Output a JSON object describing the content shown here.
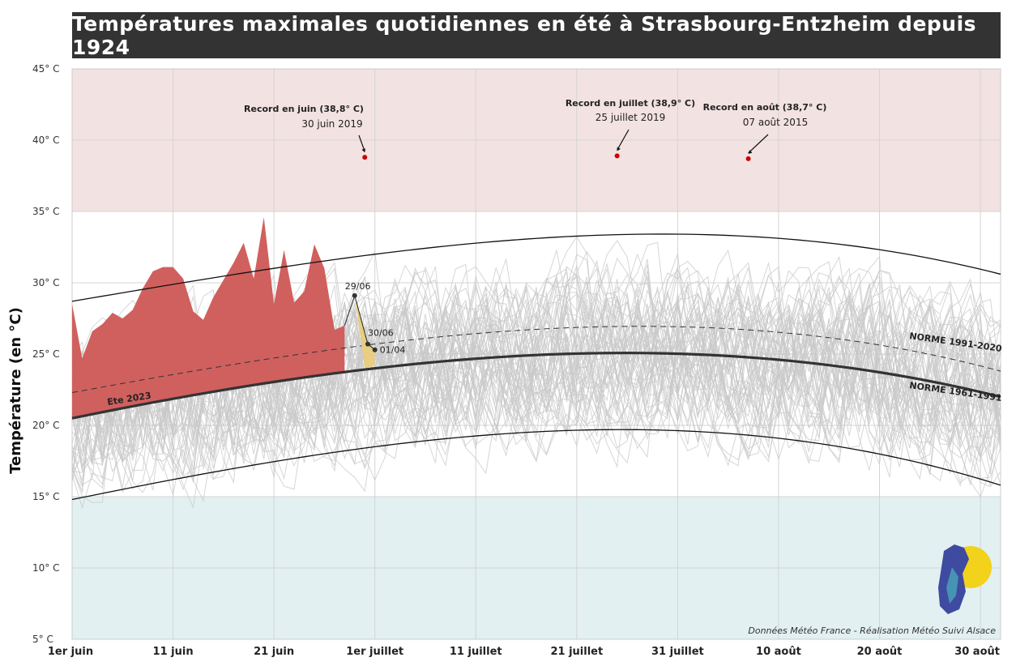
{
  "title": "Températures maximales quotidiennes en été à Strasbourg-Entzheim depuis 1924",
  "credit": "Données Météo France - Réalisation Météo Suivi Alsace",
  "logo_text": "Météo Suivi Alsace",
  "chart_data": {
    "type": "line",
    "ylabel": "Température (en °C)",
    "ylim": [
      5,
      45
    ],
    "y_ticks": [
      "45° C",
      "40° C",
      "35° C",
      "30° C",
      "25° C",
      "20° C",
      "15° C",
      "10° C",
      "5° C"
    ],
    "x_ticks": [
      "1er juin",
      "11 juin",
      "21 juin",
      "1er juillet",
      "11 juillet",
      "21 juillet",
      "31 juillet",
      "10 août",
      "20 août",
      "30 août"
    ],
    "colors": {
      "hot_zone": "#f3e2e2",
      "cold_zone": "#e2f0f1",
      "summer_2023": "#d0605e",
      "recent_days": "#e8cd82",
      "record_marker": "#cc0000",
      "history_lines": "#c8c8c8"
    },
    "records": [
      {
        "label": "Record en juin (38,8° C)",
        "date": "30 juin 2019",
        "x_day": 29,
        "value": 38.8
      },
      {
        "label": "Record en juillet (38,9° C)",
        "date": "25 juillet 2019",
        "x_day": 54,
        "value": 38.9
      },
      {
        "label": "Record en août (38,7° C)",
        "date": "07 août 2015",
        "x_day": 67,
        "value": 38.7
      }
    ],
    "norms": [
      {
        "name": "NORME 1991-2020",
        "style": "dashed",
        "x": [
          0,
          30,
          61,
          92
        ],
        "values": [
          22.3,
          25.7,
          26.9,
          23.8
        ]
      },
      {
        "name": "NORME 1961-1991",
        "style": "bold",
        "x": [
          0,
          30,
          61,
          92
        ],
        "values": [
          20.5,
          24.0,
          25.0,
          22.0
        ]
      },
      {
        "name": "upper envelope",
        "style": "thin",
        "x": [
          0,
          30,
          61,
          92
        ],
        "values": [
          28.7,
          32.0,
          33.4,
          30.6
        ]
      },
      {
        "name": "lower envelope",
        "style": "thin",
        "x": [
          0,
          30,
          61,
          92
        ],
        "values": [
          14.8,
          18.5,
          19.6,
          15.8
        ]
      }
    ],
    "series_2023": {
      "name": "Ete 2023",
      "x": [
        0,
        1,
        2,
        3,
        4,
        5,
        6,
        7,
        8,
        9,
        10,
        11,
        12,
        13,
        14,
        15,
        16,
        17,
        18,
        19,
        20,
        21,
        22,
        23,
        24,
        25,
        26,
        27
      ],
      "values": [
        28.5,
        24.7,
        26.6,
        27.1,
        27.9,
        27.5,
        28.1,
        29.6,
        30.8,
        31.1,
        31.1,
        30.3,
        28.0,
        27.4,
        29.0,
        30.2,
        31.4,
        32.8,
        30.3,
        34.6,
        28.5,
        32.3,
        28.6,
        29.4,
        32.7,
        31.0,
        26.7,
        27.0
      ]
    },
    "recent_days": [
      {
        "label": "29/06",
        "x_day": 28,
        "value": 29.1
      },
      {
        "label": "30/06",
        "x_day": 29.3,
        "value": 25.7
      },
      {
        "label": "01/04",
        "x_day": 30,
        "value": 25.3
      }
    ]
  }
}
